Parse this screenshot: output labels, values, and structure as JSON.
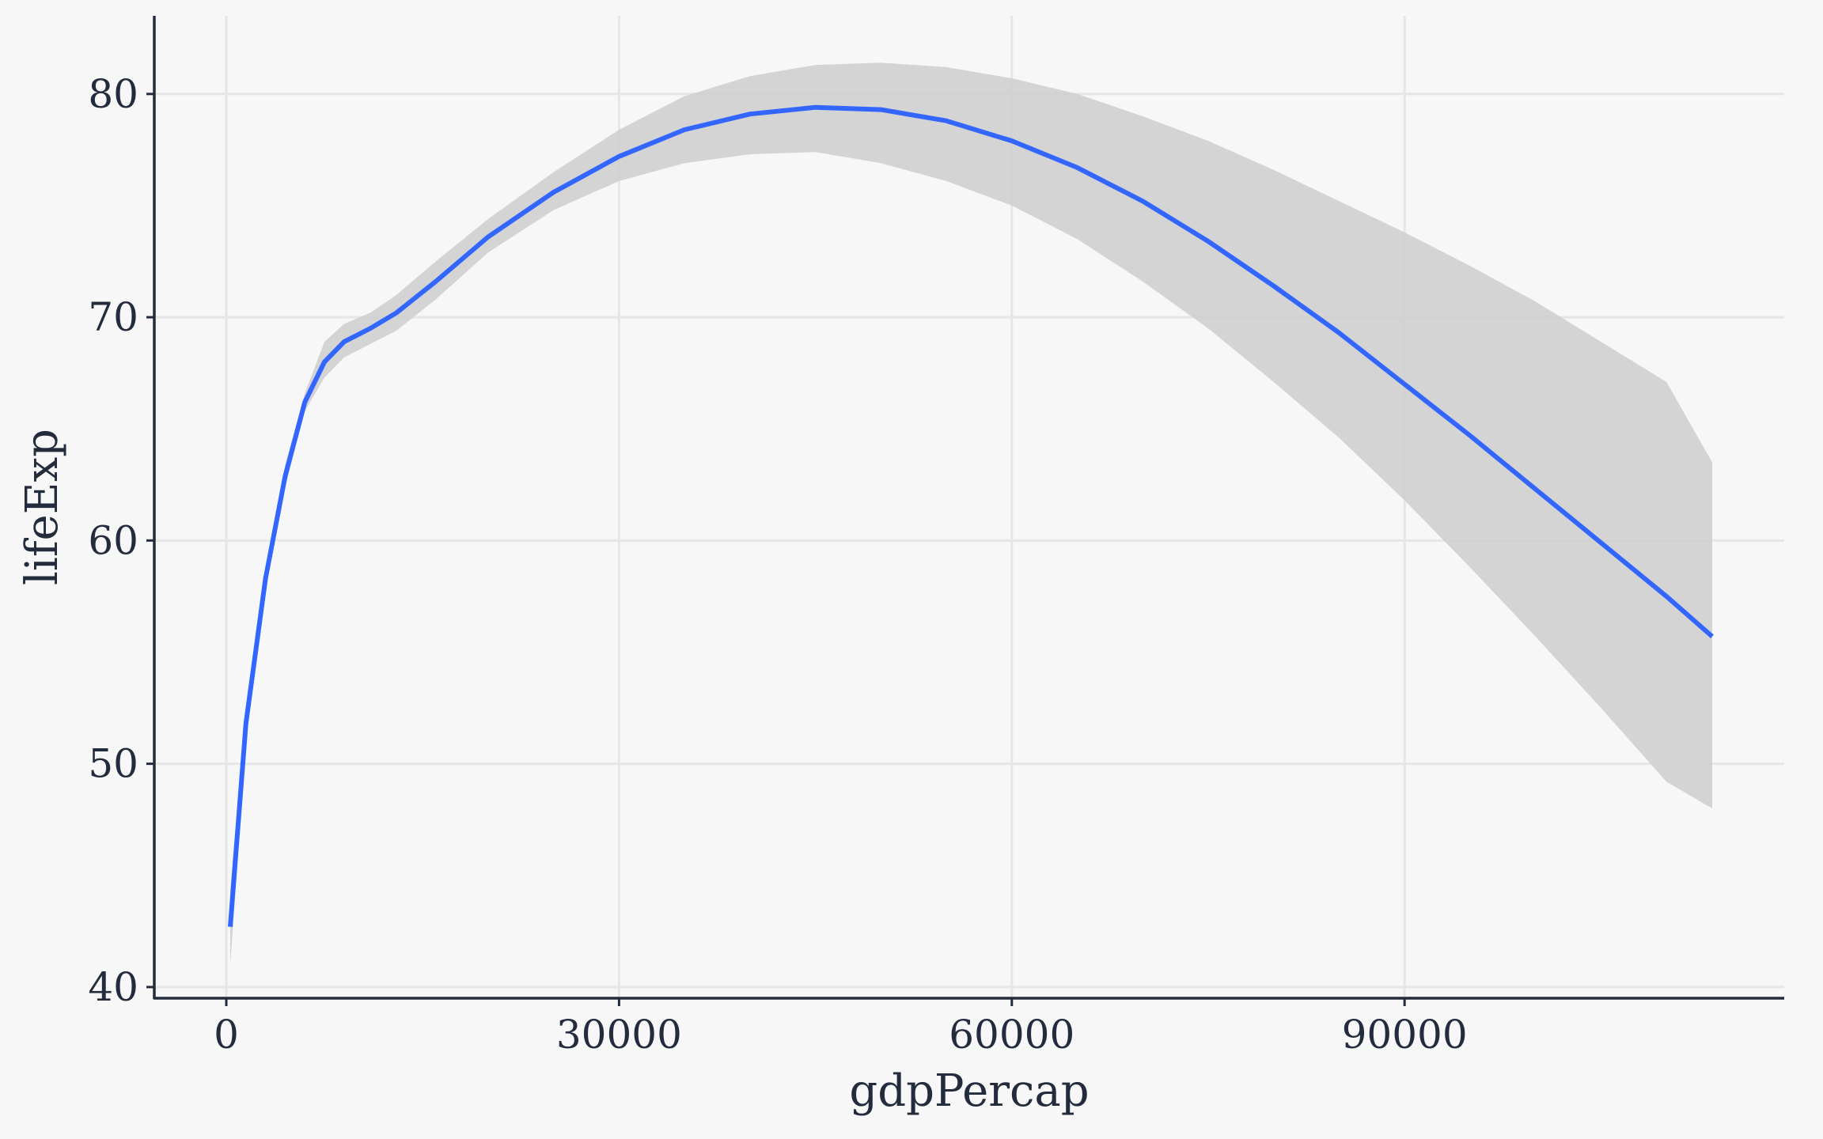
{
  "chart_data": {
    "type": "line",
    "title": "",
    "xlabel": "gdpPercap",
    "ylabel": "lifeExp",
    "xlim": [
      -5500,
      119000
    ],
    "ylim": [
      39.5,
      83.5
    ],
    "x_ticks": [
      0,
      30000,
      60000,
      90000
    ],
    "y_ticks": [
      40,
      50,
      60,
      70,
      80
    ],
    "x_tick_labels": [
      "0",
      "30000",
      "60000",
      "90000"
    ],
    "y_tick_labels": [
      "40",
      "50",
      "60",
      "70",
      "80"
    ],
    "grid": true,
    "legend": "none",
    "colors": {
      "background": "#f7f7f7",
      "grid": "#e6e6e6",
      "axis": "#232c3d",
      "line": "#3366ff",
      "ribbon": "#cfcfcf"
    },
    "series": [
      {
        "type": "smooth",
        "x": [
          300,
          1500,
          3000,
          4500,
          6000,
          7500,
          9000,
          11000,
          13000,
          16000,
          20000,
          25000,
          30000,
          35000,
          40000,
          45000,
          50000,
          55000,
          60000,
          65000,
          70000,
          75000,
          80000,
          85000,
          90000,
          95000,
          100000,
          105000,
          110000,
          113500
        ],
        "y": [
          42.7,
          51.8,
          58.3,
          62.9,
          66.2,
          68.0,
          68.9,
          69.5,
          70.2,
          71.6,
          73.6,
          75.6,
          77.2,
          78.4,
          79.1,
          79.4,
          79.3,
          78.8,
          77.9,
          76.7,
          75.2,
          73.4,
          71.4,
          69.3,
          67.0,
          64.7,
          62.3,
          59.9,
          57.5,
          55.7
        ],
        "ymin": [
          41.0,
          51.0,
          57.8,
          62.4,
          65.8,
          67.3,
          68.2,
          68.8,
          69.4,
          70.8,
          72.9,
          74.8,
          76.1,
          76.9,
          77.3,
          77.4,
          76.9,
          76.1,
          75.0,
          73.5,
          71.6,
          69.5,
          67.1,
          64.6,
          61.8,
          58.8,
          55.7,
          52.5,
          49.2,
          48.0
        ],
        "ymax": [
          44.4,
          52.6,
          58.8,
          63.4,
          66.6,
          68.9,
          69.7,
          70.2,
          71.0,
          72.5,
          74.4,
          76.5,
          78.4,
          79.9,
          80.8,
          81.3,
          81.4,
          81.2,
          80.7,
          80.0,
          79.0,
          77.9,
          76.6,
          75.2,
          73.8,
          72.3,
          70.7,
          68.9,
          67.1,
          63.5
        ]
      }
    ]
  }
}
